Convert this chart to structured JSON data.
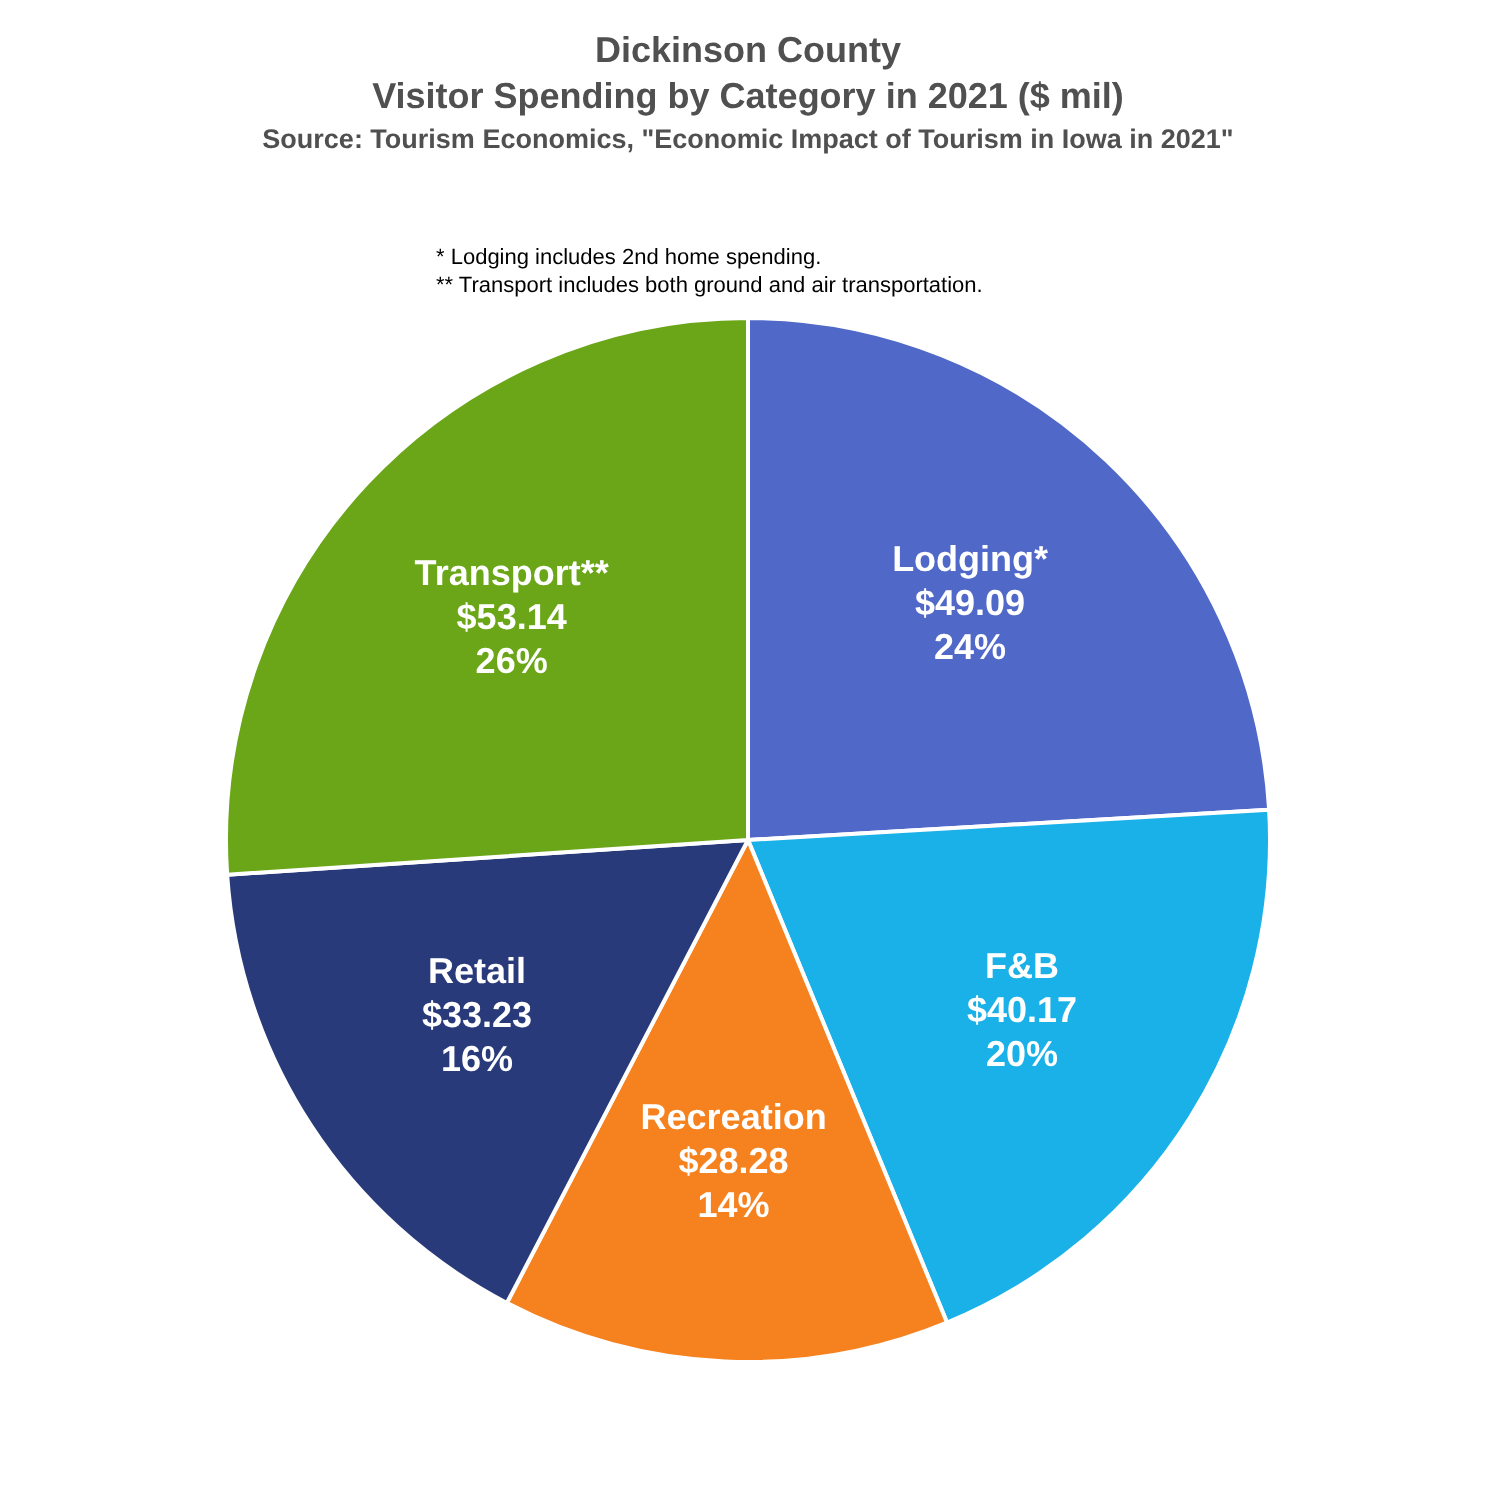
{
  "chart_data": {
    "type": "pie",
    "title": "Dickinson County\nVisitor Spending by Category in 2021 ($ mil)",
    "subtitle": "Source: Tourism Economics, \"Economic Impact of Tourism in Iowa in 2021\"",
    "annotations": [
      "* Lodging includes 2nd home spending.",
      "** Transport includes both ground and air transportation."
    ],
    "categories": [
      "Lodging*",
      "F&B",
      "Recreation",
      "Retail",
      "Transport**"
    ],
    "values": [
      49.09,
      40.17,
      28.28,
      33.23,
      53.14
    ],
    "colors": [
      "#5068c8",
      "#1ab0e8",
      "#f5821f",
      "#283a7a",
      "#6aa618"
    ],
    "value_labels": [
      "$49.09\n24%",
      "$40.17\n20%",
      "$28.28\n14%",
      "$33.23\n16%",
      "$53.14\n26%"
    ],
    "legend": false
  }
}
